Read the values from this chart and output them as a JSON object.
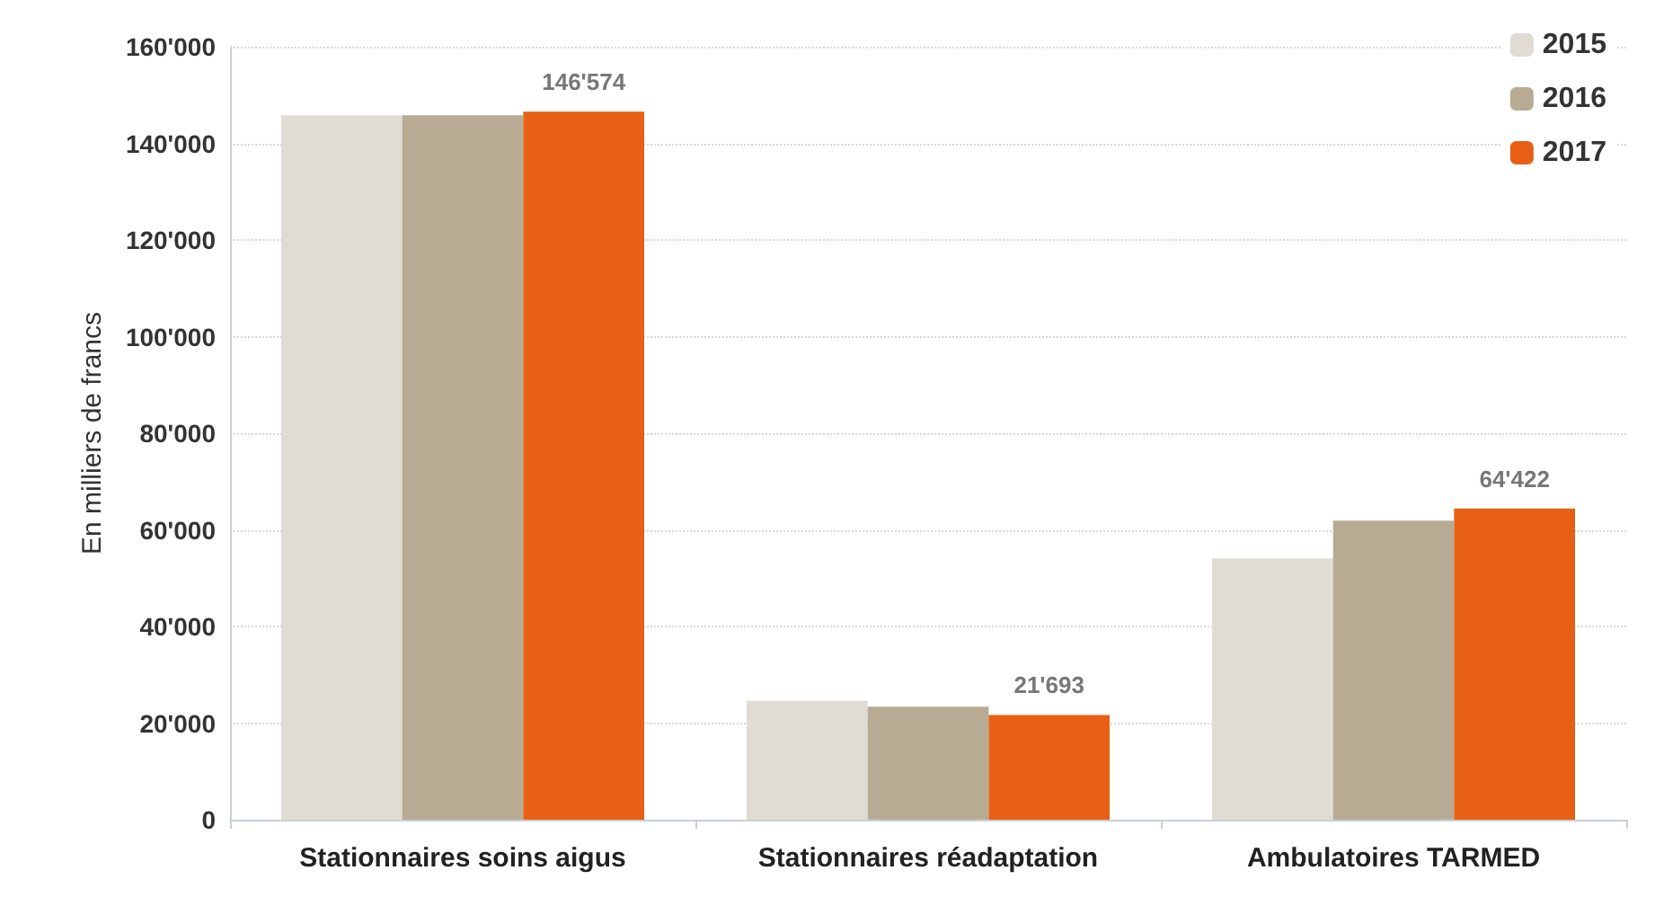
{
  "chart_data": {
    "type": "bar",
    "ylabel": "En milliers de francs",
    "categories": [
      "Stationnaires soins aigus",
      "Stationnaires réadaptation",
      "Ambulatoires TARMED"
    ],
    "series": [
      {
        "name": "2015",
        "color": "#e0dbd3",
        "values": [
          145800,
          24600,
          54100
        ]
      },
      {
        "name": "2016",
        "color": "#b8ab94",
        "values": [
          145800,
          23400,
          61900
        ]
      },
      {
        "name": "2017",
        "color": "#e86015",
        "values": [
          146574,
          21693,
          64422
        ],
        "value_labels": [
          "146'574",
          "21'693",
          "64'422"
        ]
      }
    ],
    "ylim": [
      0,
      160000
    ],
    "yticks": [
      {
        "value": 0,
        "label": "0"
      },
      {
        "value": 20000,
        "label": "20'000"
      },
      {
        "value": 40000,
        "label": "40'000"
      },
      {
        "value": 60000,
        "label": "60'000"
      },
      {
        "value": 80000,
        "label": "80'000"
      },
      {
        "value": 100000,
        "label": "100'000"
      },
      {
        "value": 120000,
        "label": "120'000"
      },
      {
        "value": 140000,
        "label": "140'000"
      },
      {
        "value": 160000,
        "label": "160'000"
      }
    ],
    "grid": "y",
    "legend": "top right"
  }
}
